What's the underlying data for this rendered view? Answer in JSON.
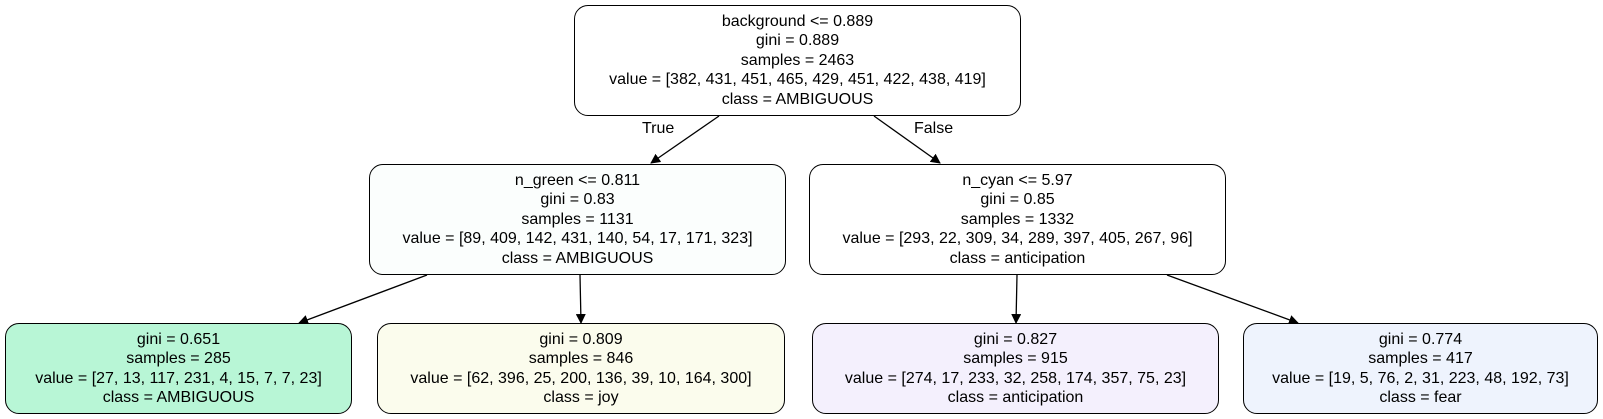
{
  "tree": {
    "nodes": [
      {
        "id": "root",
        "split": "background <= 0.889",
        "gini": "gini = 0.889",
        "samples": "samples = 2463",
        "value": "value = [382, 431, 451, 465, 429, 451, 422, 438, 419]",
        "class": "class = AMBIGUOUS",
        "fill": "#ffffff"
      },
      {
        "id": "left",
        "split": "n_green <= 0.811",
        "gini": "gini = 0.83",
        "samples": "samples = 1131",
        "value": "value = [89, 409, 142, 431, 140, 54, 17, 171, 323]",
        "class": "class = AMBIGUOUS",
        "fill": "#fbfefd"
      },
      {
        "id": "right",
        "split": "n_cyan <= 5.97",
        "gini": "gini = 0.85",
        "samples": "samples = 1332",
        "value": "value = [293, 22, 309, 34, 289, 397, 405, 267, 96]",
        "class": "class = anticipation",
        "fill": "#ffffff"
      },
      {
        "id": "leaf-1",
        "gini": "gini = 0.651",
        "samples": "samples = 285",
        "value": "value = [27, 13, 117, 231, 4, 15, 7, 7, 23]",
        "class": "class = AMBIGUOUS",
        "fill": "#b8f6d6"
      },
      {
        "id": "leaf-2",
        "gini": "gini = 0.809",
        "samples": "samples = 846",
        "value": "value = [62, 396, 25, 200, 136, 39, 10, 164, 300]",
        "class": "class = joy",
        "fill": "#fbfced"
      },
      {
        "id": "leaf-3",
        "gini": "gini = 0.827",
        "samples": "samples = 915",
        "value": "value = [274, 17, 233, 32, 258, 174, 357, 75, 23]",
        "class": "class = anticipation",
        "fill": "#f4f0fd"
      },
      {
        "id": "leaf-4",
        "gini": "gini = 0.774",
        "samples": "samples = 417",
        "value": "value = [19, 5, 76, 2, 31, 223, 48, 192, 73]",
        "class": "class = fear",
        "fill": "#eef3fd"
      }
    ],
    "edge_labels": {
      "true": "True",
      "false": "False"
    }
  }
}
